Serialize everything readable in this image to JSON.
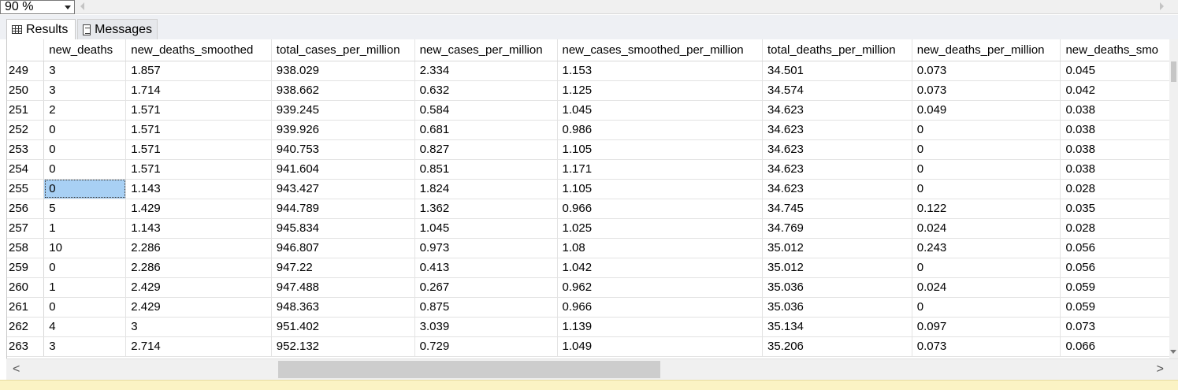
{
  "zoom": {
    "value": "90 %"
  },
  "tabs": {
    "results": "Results",
    "messages": "Messages"
  },
  "columns": [
    "new_deaths",
    "new_deaths_smoothed",
    "total_cases_per_million",
    "new_cases_per_million",
    "new_cases_smoothed_per_million",
    "total_deaths_per_million",
    "new_deaths_per_million",
    "new_deaths_smo"
  ],
  "rows": [
    {
      "n": "249",
      "c": [
        "3",
        "1.857",
        "938.029",
        "2.334",
        "1.153",
        "34.501",
        "0.073",
        "0.045"
      ]
    },
    {
      "n": "250",
      "c": [
        "3",
        "1.714",
        "938.662",
        "0.632",
        "1.125",
        "34.574",
        "0.073",
        "0.042"
      ]
    },
    {
      "n": "251",
      "c": [
        "2",
        "1.571",
        "939.245",
        "0.584",
        "1.045",
        "34.623",
        "0.049",
        "0.038"
      ]
    },
    {
      "n": "252",
      "c": [
        "0",
        "1.571",
        "939.926",
        "0.681",
        "0.986",
        "34.623",
        "0",
        "0.038"
      ]
    },
    {
      "n": "253",
      "c": [
        "0",
        "1.571",
        "940.753",
        "0.827",
        "1.105",
        "34.623",
        "0",
        "0.038"
      ]
    },
    {
      "n": "254",
      "c": [
        "0",
        "1.571",
        "941.604",
        "0.851",
        "1.171",
        "34.623",
        "0",
        "0.038"
      ]
    },
    {
      "n": "255",
      "c": [
        "0",
        "1.143",
        "943.427",
        "1.824",
        "1.105",
        "34.623",
        "0",
        "0.028"
      ]
    },
    {
      "n": "256",
      "c": [
        "5",
        "1.429",
        "944.789",
        "1.362",
        "0.966",
        "34.745",
        "0.122",
        "0.035"
      ]
    },
    {
      "n": "257",
      "c": [
        "1",
        "1.143",
        "945.834",
        "1.045",
        "1.025",
        "34.769",
        "0.024",
        "0.028"
      ]
    },
    {
      "n": "258",
      "c": [
        "10",
        "2.286",
        "946.807",
        "0.973",
        "1.08",
        "35.012",
        "0.243",
        "0.056"
      ]
    },
    {
      "n": "259",
      "c": [
        "0",
        "2.286",
        "947.22",
        "0.413",
        "1.042",
        "35.012",
        "0",
        "0.056"
      ]
    },
    {
      "n": "260",
      "c": [
        "1",
        "2.429",
        "947.488",
        "0.267",
        "0.962",
        "35.036",
        "0.024",
        "0.059"
      ]
    },
    {
      "n": "261",
      "c": [
        "0",
        "2.429",
        "948.363",
        "0.875",
        "0.966",
        "35.036",
        "0",
        "0.059"
      ]
    },
    {
      "n": "262",
      "c": [
        "4",
        "3",
        "951.402",
        "3.039",
        "1.139",
        "35.134",
        "0.097",
        "0.073"
      ]
    },
    {
      "n": "263",
      "c": [
        "3",
        "2.714",
        "952.132",
        "0.729",
        "1.049",
        "35.206",
        "0.073",
        "0.066"
      ]
    }
  ],
  "selected": {
    "row": "255",
    "column": "new_deaths"
  },
  "colors": {
    "selection": "#a8d0f4",
    "status_bar": "#fbf3c4",
    "tab_strip": "#eef0f4"
  },
  "icons": {
    "results": "grid-icon",
    "messages": "messages-icon"
  }
}
